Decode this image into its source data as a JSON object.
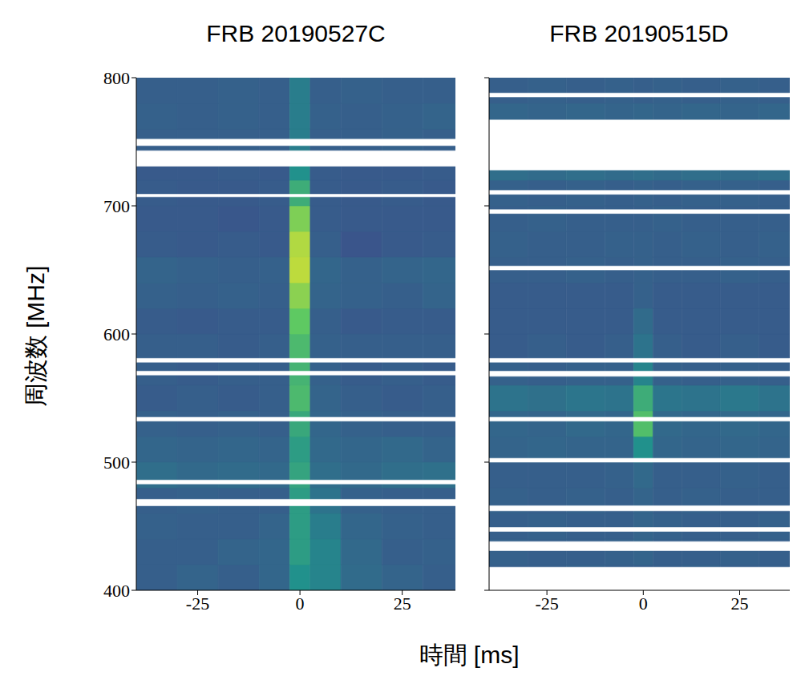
{
  "xlabel": "時間 [ms]",
  "chart_data": [
    {
      "type": "heatmap",
      "title": "FRB 20190527C",
      "ylabel": "周波数 [MHz]",
      "xlim": [
        -40,
        38
      ],
      "ylim": [
        400,
        800
      ],
      "xticks": [
        -25,
        0,
        25
      ],
      "yticks": [
        400,
        500,
        600,
        700,
        800
      ],
      "time_edges": [
        -40,
        -30,
        -20,
        -10,
        -2.5,
        2.5,
        10,
        20,
        30,
        38
      ],
      "freq_edges": [
        400,
        420,
        440,
        460,
        480,
        500,
        520,
        540,
        560,
        580,
        600,
        620,
        640,
        660,
        680,
        700,
        720,
        740,
        760,
        780,
        800
      ],
      "cell_range": [
        0,
        1
      ],
      "cells": [
        [
          0.3,
          0.32,
          0.3,
          0.33,
          0.5,
          0.45,
          0.35,
          0.32,
          0.3
        ],
        [
          0.3,
          0.3,
          0.32,
          0.33,
          0.55,
          0.45,
          0.34,
          0.3,
          0.31
        ],
        [
          0.31,
          0.3,
          0.3,
          0.32,
          0.55,
          0.42,
          0.33,
          0.31,
          0.3
        ],
        [
          0.3,
          0.31,
          0.3,
          0.3,
          0.55,
          0.38,
          0.31,
          0.3,
          0.3
        ],
        [
          0.36,
          0.34,
          0.35,
          0.34,
          0.58,
          0.36,
          0.34,
          0.36,
          0.37
        ],
        [
          0.33,
          0.32,
          0.33,
          0.32,
          0.55,
          0.34,
          0.33,
          0.34,
          0.32
        ],
        [
          0.31,
          0.3,
          0.31,
          0.3,
          0.6,
          0.33,
          0.31,
          0.3,
          0.3
        ],
        [
          0.29,
          0.3,
          0.29,
          0.3,
          0.68,
          0.32,
          0.3,
          0.29,
          0.3
        ],
        [
          0.3,
          0.29,
          0.3,
          0.3,
          0.65,
          0.31,
          0.29,
          0.3,
          0.29
        ],
        [
          0.3,
          0.3,
          0.29,
          0.3,
          0.68,
          0.31,
          0.3,
          0.3,
          0.3
        ],
        [
          0.29,
          0.28,
          0.29,
          0.29,
          0.75,
          0.3,
          0.28,
          0.29,
          0.29
        ],
        [
          0.31,
          0.3,
          0.31,
          0.3,
          0.82,
          0.32,
          0.31,
          0.3,
          0.32
        ],
        [
          0.32,
          0.31,
          0.3,
          0.31,
          0.9,
          0.33,
          0.31,
          0.32,
          0.33
        ],
        [
          0.29,
          0.28,
          0.29,
          0.28,
          0.88,
          0.3,
          0.26,
          0.28,
          0.29
        ],
        [
          0.28,
          0.28,
          0.27,
          0.28,
          0.8,
          0.29,
          0.28,
          0.28,
          0.28
        ],
        [
          0.29,
          0.28,
          0.28,
          0.29,
          0.62,
          0.29,
          0.28,
          0.29,
          0.28
        ],
        [
          0.28,
          0.28,
          0.29,
          0.28,
          0.5,
          0.29,
          0.28,
          0.28,
          0.29
        ],
        [
          0.3,
          0.3,
          0.3,
          0.3,
          0.42,
          0.3,
          0.3,
          0.31,
          0.3
        ],
        [
          0.31,
          0.3,
          0.31,
          0.3,
          0.42,
          0.31,
          0.3,
          0.31,
          0.32
        ],
        [
          0.3,
          0.3,
          0.31,
          0.3,
          0.42,
          0.3,
          0.31,
          0.3,
          0.3
        ]
      ],
      "masked_bands": [
        [
          747,
          752
        ],
        [
          731,
          743
        ],
        [
          707,
          709
        ],
        [
          578,
          581
        ],
        [
          568,
          571
        ],
        [
          532,
          535
        ],
        [
          483,
          486
        ],
        [
          466,
          471
        ]
      ]
    },
    {
      "type": "heatmap",
      "title": "FRB 20190515D",
      "tick_labels": "x",
      "xlim": [
        -40,
        38
      ],
      "ylim": [
        400,
        800
      ],
      "xticks": [
        -25,
        0,
        25
      ],
      "yticks": [
        400,
        500,
        600,
        700,
        800
      ],
      "time_edges": [
        -40,
        -30,
        -20,
        -10,
        -2.5,
        2.5,
        10,
        20,
        30,
        38
      ],
      "freq_edges": [
        400,
        420,
        440,
        460,
        480,
        500,
        520,
        540,
        560,
        580,
        600,
        620,
        640,
        660,
        680,
        700,
        720,
        740,
        760,
        780,
        800
      ],
      "cell_range": [
        0,
        1
      ],
      "cells": [
        [
          0.3,
          0.3,
          0.31,
          0.3,
          0.3,
          0.3,
          0.31,
          0.3,
          0.3
        ],
        [
          0.31,
          0.3,
          0.3,
          0.31,
          0.32,
          0.3,
          0.3,
          0.31,
          0.3
        ],
        [
          0.3,
          0.31,
          0.3,
          0.3,
          0.32,
          0.31,
          0.3,
          0.3,
          0.31
        ],
        [
          0.31,
          0.3,
          0.31,
          0.3,
          0.32,
          0.3,
          0.31,
          0.3,
          0.3
        ],
        [
          0.3,
          0.3,
          0.3,
          0.31,
          0.34,
          0.3,
          0.3,
          0.31,
          0.3
        ],
        [
          0.32,
          0.33,
          0.32,
          0.32,
          0.5,
          0.33,
          0.32,
          0.33,
          0.32
        ],
        [
          0.33,
          0.32,
          0.34,
          0.33,
          0.7,
          0.34,
          0.33,
          0.34,
          0.33
        ],
        [
          0.38,
          0.37,
          0.39,
          0.38,
          0.62,
          0.39,
          0.38,
          0.4,
          0.38
        ],
        [
          0.31,
          0.3,
          0.31,
          0.31,
          0.45,
          0.31,
          0.3,
          0.31,
          0.3
        ],
        [
          0.29,
          0.3,
          0.29,
          0.3,
          0.38,
          0.3,
          0.29,
          0.3,
          0.29
        ],
        [
          0.29,
          0.29,
          0.29,
          0.29,
          0.35,
          0.29,
          0.29,
          0.29,
          0.29
        ],
        [
          0.29,
          0.29,
          0.29,
          0.29,
          0.31,
          0.29,
          0.29,
          0.29,
          0.29
        ],
        [
          0.3,
          0.3,
          0.31,
          0.3,
          0.31,
          0.3,
          0.3,
          0.31,
          0.3
        ],
        [
          0.31,
          0.3,
          0.3,
          0.31,
          0.31,
          0.3,
          0.31,
          0.3,
          0.31
        ],
        [
          0.3,
          0.31,
          0.3,
          0.3,
          0.3,
          0.31,
          0.3,
          0.3,
          0.3
        ],
        [
          0.31,
          0.3,
          0.31,
          0.3,
          0.31,
          0.3,
          0.31,
          0.31,
          0.3
        ],
        [
          0.36,
          0.35,
          0.36,
          0.35,
          0.36,
          0.35,
          0.36,
          0.35,
          0.36
        ],
        [
          0.31,
          0.3,
          0.31,
          0.3,
          0.31,
          0.3,
          0.31,
          0.3,
          0.31
        ],
        [
          0.33,
          0.32,
          0.33,
          0.32,
          0.33,
          0.32,
          0.33,
          0.32,
          0.33
        ],
        [
          0.3,
          0.31,
          0.3,
          0.31,
          0.3,
          0.31,
          0.3,
          0.31,
          0.3
        ]
      ],
      "masked_bands": [
        [
          785,
          788
        ],
        [
          728,
          767
        ],
        [
          709,
          712
        ],
        [
          694,
          697
        ],
        [
          650,
          653
        ],
        [
          578,
          581
        ],
        [
          567,
          571
        ],
        [
          532,
          535
        ],
        [
          500,
          503
        ],
        [
          462,
          466
        ],
        [
          446,
          449
        ],
        [
          431,
          438
        ],
        [
          400,
          418
        ]
      ]
    }
  ]
}
